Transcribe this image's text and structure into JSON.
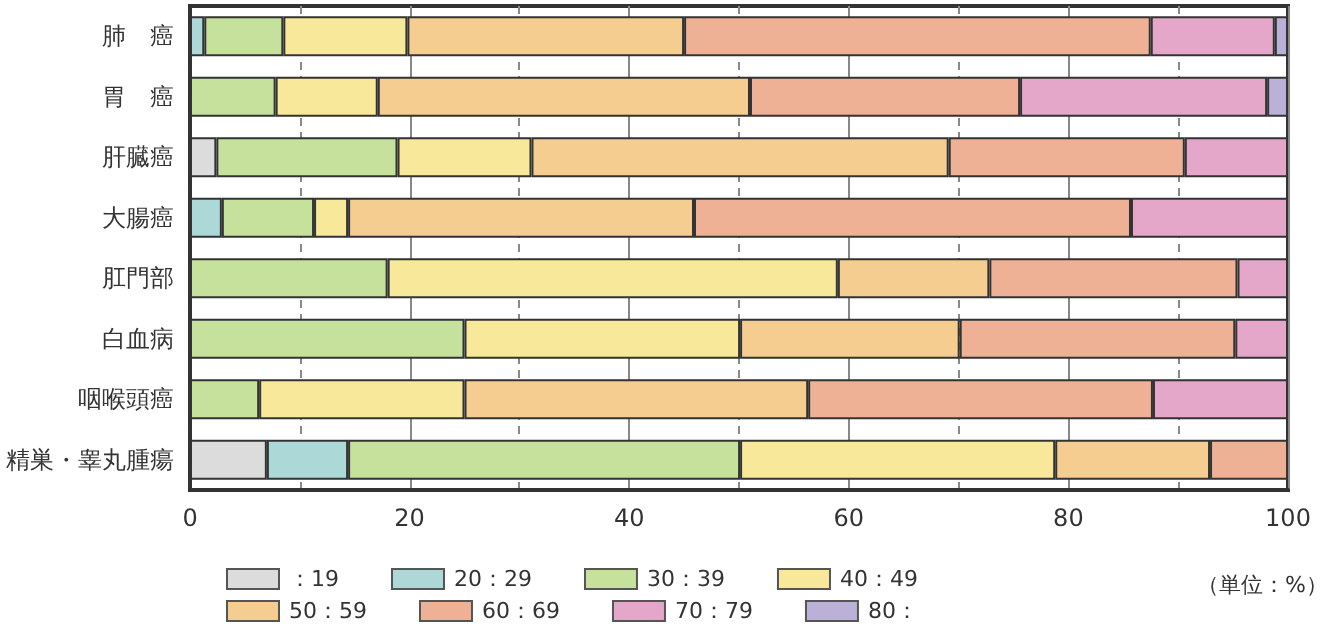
{
  "chart_data": {
    "type": "bar",
    "orientation": "horizontal",
    "stacked": true,
    "categories": [
      "肺　癌",
      "胃　癌",
      "肝臓癌",
      "大腸癌",
      "肛門部",
      "白血病",
      "咽喉頭癌",
      "精巣・睾丸腫瘍"
    ],
    "series": [
      {
        "name": "：19",
        "color": "#dcdcdc",
        "values": [
          null,
          null,
          2.4,
          null,
          null,
          null,
          null,
          7.0
        ]
      },
      {
        "name": "20：29",
        "color": "#acd8d8",
        "values": [
          1.3,
          null,
          null,
          2.9,
          null,
          null,
          null,
          7.4
        ]
      },
      {
        "name": "30：39",
        "color": "#c5e19c",
        "values": [
          7.2,
          7.8,
          16.5,
          8.4,
          18.0,
          25.0,
          6.3,
          35.7
        ]
      },
      {
        "name": "40：49",
        "color": "#f8e99a",
        "values": [
          11.3,
          9.3,
          12.2,
          3.1,
          41.0,
          25.1,
          18.7,
          28.7
        ]
      },
      {
        "name": "50：59",
        "color": "#f5cd90",
        "values": [
          25.2,
          33.9,
          38.0,
          31.5,
          13.8,
          20.0,
          31.3,
          14.1
        ]
      },
      {
        "name": "60：69",
        "color": "#eeb196",
        "values": [
          42.5,
          24.6,
          21.5,
          39.8,
          22.6,
          25.1,
          31.4,
          7.1
        ]
      },
      {
        "name": "70：79",
        "color": "#e4a6c9",
        "values": [
          11.3,
          22.5,
          9.4,
          14.3,
          4.6,
          4.8,
          12.3,
          null
        ]
      },
      {
        "name": "80：",
        "color": "#bab0d8",
        "values": [
          1.2,
          1.9,
          null,
          null,
          null,
          null,
          null,
          null
        ]
      }
    ],
    "xlim": [
      0,
      100
    ],
    "xticks": [
      0,
      {
        "value": 10,
        "label": null
      },
      20,
      {
        "value": 30,
        "label": null
      },
      40,
      {
        "value": 50,
        "label": null
      },
      60,
      {
        "value": 70,
        "label": null
      },
      80,
      {
        "value": 90,
        "label": null
      },
      100
    ],
    "grid": "x",
    "legend": "bottom",
    "annotations": [
      "（単位：%）"
    ]
  }
}
